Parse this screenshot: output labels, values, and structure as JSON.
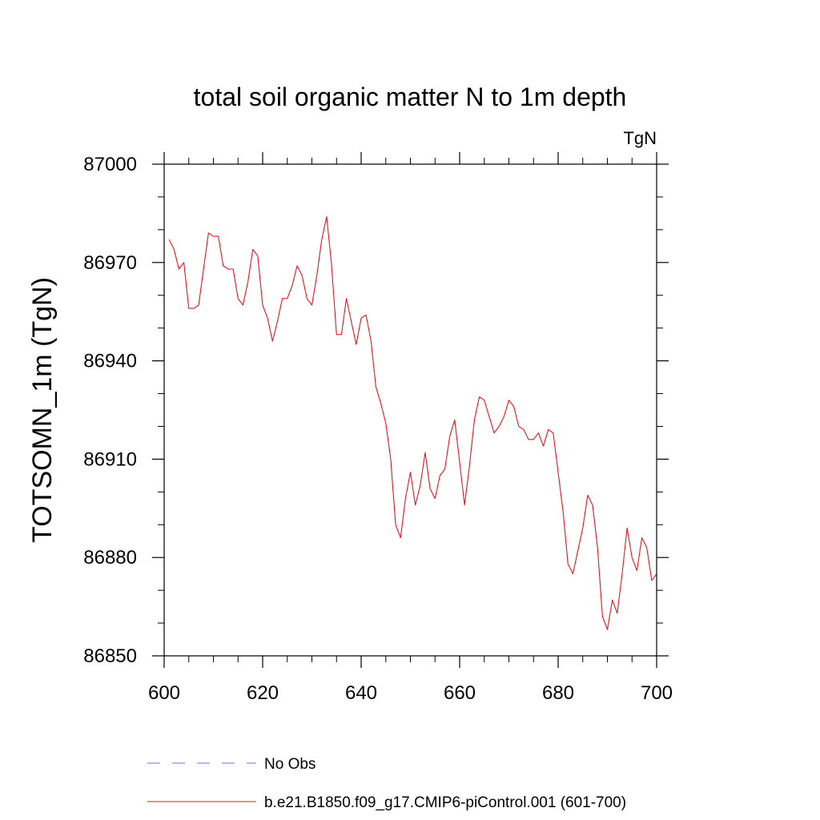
{
  "chart_data": {
    "type": "line",
    "title": "total soil organic matter N to 1m depth",
    "units": "TgN",
    "xlabel": "",
    "ylabel": "TOTSOMN_1m  (TgN)",
    "xlim": [
      600,
      700
    ],
    "ylim": [
      86850,
      87000
    ],
    "x_ticks": [
      600,
      620,
      640,
      660,
      680,
      700
    ],
    "x_tick_labels": [
      "600",
      "620",
      "640",
      "660",
      "680",
      "700"
    ],
    "x_minor_step": 5,
    "y_ticks": [
      86850,
      86880,
      86910,
      86940,
      86970,
      87000
    ],
    "y_tick_labels": [
      "86850",
      "86880",
      "86910",
      "86940",
      "86970",
      "87000"
    ],
    "y_minor_step": 10,
    "grid": false,
    "legend_position": "bottom",
    "series": [
      {
        "name": "No Obs",
        "color": "#7b6fd0",
        "dash": "dashed",
        "x": [],
        "values": []
      },
      {
        "name": "b.e21.B1850.f09_g17.CMIP6-piControl.001 (601-700)",
        "color": "#e8141e",
        "dash": "solid",
        "x": [
          601,
          602,
          603,
          604,
          605,
          606,
          607,
          608,
          609,
          610,
          611,
          612,
          613,
          614,
          615,
          616,
          617,
          618,
          619,
          620,
          621,
          622,
          623,
          624,
          625,
          626,
          627,
          628,
          629,
          630,
          631,
          632,
          633,
          634,
          635,
          636,
          637,
          638,
          639,
          640,
          641,
          642,
          643,
          644,
          645,
          646,
          647,
          648,
          649,
          650,
          651,
          652,
          653,
          654,
          655,
          656,
          657,
          658,
          659,
          660,
          661,
          662,
          663,
          664,
          665,
          666,
          667,
          668,
          669,
          670,
          671,
          672,
          673,
          674,
          675,
          676,
          677,
          678,
          679,
          680,
          681,
          682,
          683,
          684,
          685,
          686,
          687,
          688,
          689,
          690,
          691,
          692,
          693,
          694,
          695,
          696,
          697,
          698,
          699,
          700
        ],
        "values": [
          86977,
          86974,
          86968,
          86970,
          86956,
          86956,
          86957,
          86968,
          86979,
          86978,
          86978,
          86969,
          86968,
          86968,
          86959,
          86957,
          86964,
          86974,
          86972,
          86957,
          86953,
          86946,
          86952,
          86959,
          86959,
          86963,
          86969,
          86966,
          86959,
          86957,
          86966,
          86977,
          86984,
          86969,
          86948,
          86948,
          86959,
          86952,
          86945,
          86953,
          86954,
          86946,
          86932,
          86927,
          86921,
          86910,
          86890,
          86886,
          86898,
          86906,
          86896,
          86902,
          86912,
          86901,
          86898,
          86905,
          86907,
          86917,
          86922,
          86909,
          86896,
          86908,
          86922,
          86929,
          86928,
          86923,
          86918,
          86920,
          86923,
          86928,
          86926,
          86920,
          86919,
          86916,
          86916,
          86918,
          86914,
          86919,
          86918,
          86906,
          86894,
          86878,
          86875,
          86882,
          86889,
          86899,
          86896,
          86883,
          86862,
          86858,
          86867,
          86863,
          86875,
          86889,
          86880,
          86876,
          86886,
          86883,
          86873,
          86875
        ]
      }
    ]
  }
}
